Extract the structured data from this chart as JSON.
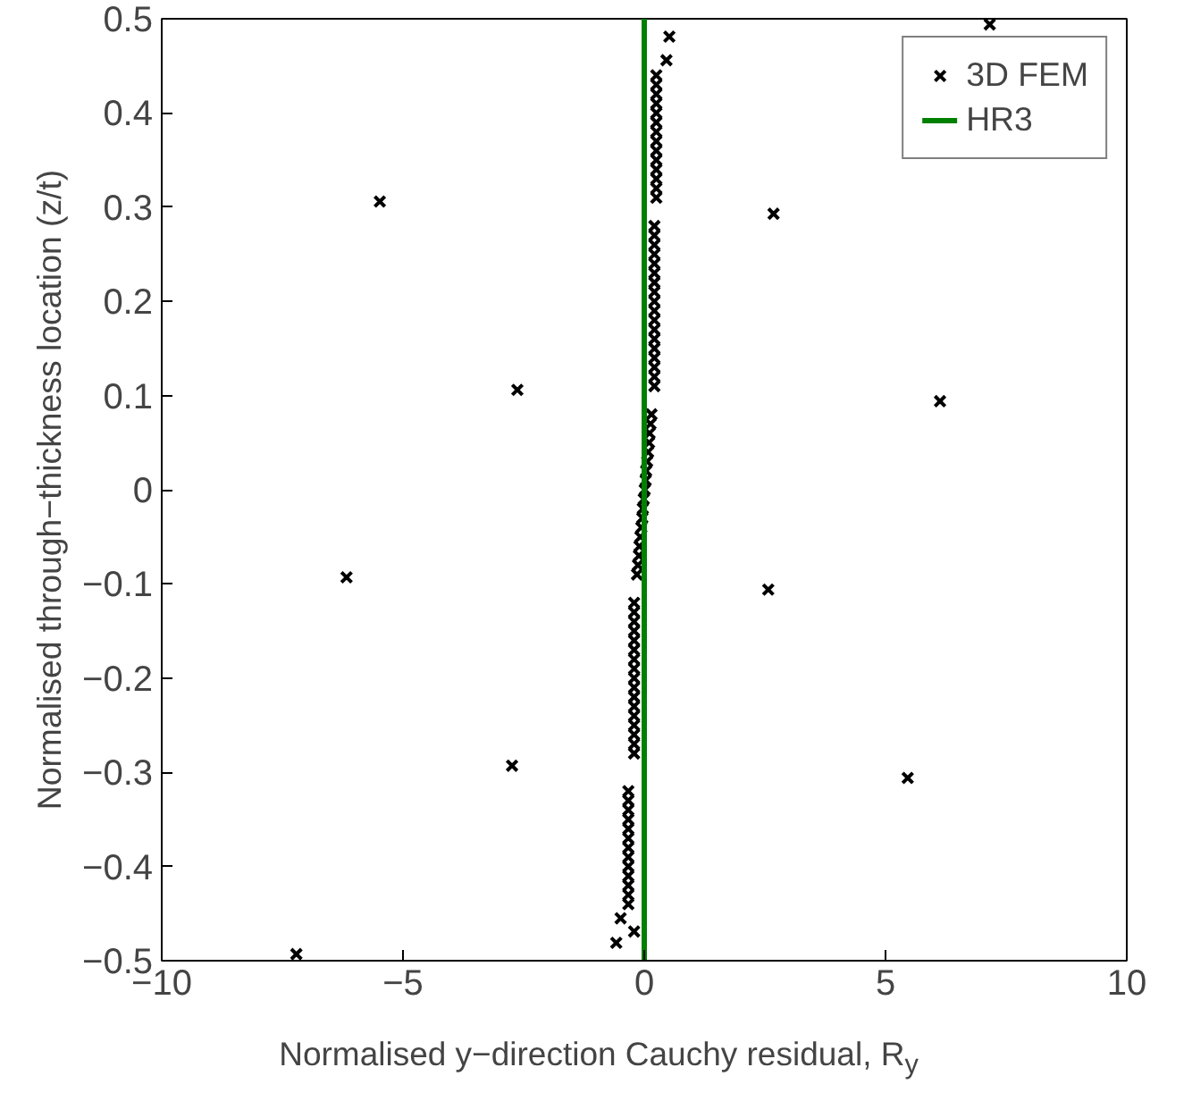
{
  "chart_data": {
    "type": "scatter",
    "xlabel": "Normalised y−direction Cauchy residual, R$_{y}$",
    "ylabel": "Normalised through−thickness location (z/t)",
    "xlim": [
      -10,
      10
    ],
    "ylim": [
      -0.5,
      0.5
    ],
    "xticks": [
      {
        "value": -10,
        "label": "−10"
      },
      {
        "value": -5,
        "label": "−5"
      },
      0,
      5,
      10
    ],
    "yticks": [
      {
        "value": -0.5,
        "label": "−0.5"
      },
      {
        "value": -0.4,
        "label": "−0.4"
      },
      {
        "value": -0.3,
        "label": "−0.3"
      },
      {
        "value": -0.2,
        "label": "−0.2"
      },
      {
        "value": -0.1,
        "label": "−0.1"
      },
      0,
      0.1,
      0.2,
      0.3,
      0.4,
      0.5
    ],
    "grid": false,
    "legend": "top right",
    "series": [
      {
        "name": "3D FEM",
        "color": "#000000",
        "marker": "cross",
        "x": [
          -5.48,
          -2.63,
          -6.17,
          -2.74,
          -7.21,
          2.68,
          6.13,
          2.57,
          5.46,
          7.16,
          0.52,
          0.46,
          0.25,
          0.25,
          0.25,
          0.25,
          0.25,
          0.25,
          0.25,
          0.25,
          0.25,
          0.25,
          0.25,
          0.25,
          0.25,
          0.25,
          0.21,
          0.21,
          0.21,
          0.21,
          0.21,
          0.21,
          0.21,
          0.21,
          0.21,
          0.21,
          0.21,
          0.21,
          0.21,
          0.21,
          0.21,
          0.21,
          0.21,
          0.21,
          0.15,
          0.13,
          0.11,
          0.1,
          0.08,
          0.06,
          0.04,
          0.03,
          0.01,
          -0.01,
          -0.03,
          -0.04,
          -0.06,
          -0.08,
          -0.1,
          -0.11,
          -0.13,
          -0.15,
          -0.21,
          -0.21,
          -0.21,
          -0.21,
          -0.21,
          -0.21,
          -0.21,
          -0.21,
          -0.21,
          -0.21,
          -0.21,
          -0.21,
          -0.21,
          -0.21,
          -0.21,
          -0.21,
          -0.21,
          -0.33,
          -0.33,
          -0.33,
          -0.33,
          -0.33,
          -0.33,
          -0.33,
          -0.33,
          -0.33,
          -0.33,
          -0.33,
          -0.33,
          -0.33,
          -0.49,
          -0.21,
          -0.58
        ],
        "values": [
          0.306,
          0.106,
          -0.093,
          -0.293,
          -0.493,
          0.293,
          0.094,
          -0.106,
          -0.306,
          0.494,
          0.481,
          0.456,
          0.44,
          0.43,
          0.42,
          0.41,
          0.4,
          0.39,
          0.38,
          0.37,
          0.36,
          0.35,
          0.34,
          0.33,
          0.32,
          0.31,
          0.28,
          0.27,
          0.26,
          0.25,
          0.24,
          0.23,
          0.22,
          0.21,
          0.2,
          0.19,
          0.18,
          0.17,
          0.16,
          0.15,
          0.14,
          0.13,
          0.12,
          0.11,
          0.08,
          0.07,
          0.06,
          0.05,
          0.04,
          0.03,
          0.02,
          0.01,
          0,
          -0.01,
          -0.02,
          -0.03,
          -0.04,
          -0.05,
          -0.06,
          -0.07,
          -0.08,
          -0.09,
          -0.12,
          -0.13,
          -0.14,
          -0.15,
          -0.16,
          -0.17,
          -0.18,
          -0.19,
          -0.2,
          -0.21,
          -0.22,
          -0.23,
          -0.24,
          -0.25,
          -0.26,
          -0.27,
          -0.28,
          -0.32,
          -0.33,
          -0.34,
          -0.35,
          -0.36,
          -0.37,
          -0.38,
          -0.39,
          -0.4,
          -0.41,
          -0.42,
          -0.43,
          -0.44,
          -0.455,
          -0.469,
          -0.481
        ]
      },
      {
        "name": "HR3",
        "color": "#008000",
        "type": "line",
        "line_style": "solid",
        "x": [
          0,
          0
        ],
        "values": [
          -0.5,
          0.5
        ]
      }
    ]
  }
}
